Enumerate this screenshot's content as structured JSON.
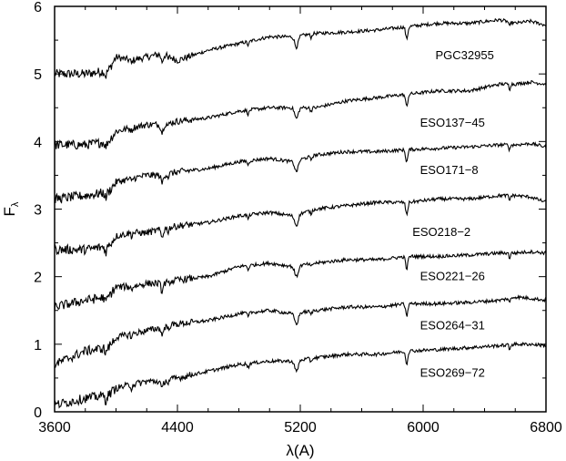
{
  "chart_data": {
    "type": "line",
    "title": "",
    "xlabel": "λ(A)",
    "ylabel": "F",
    "ylabel_subscript": "λ",
    "xlim": [
      3600,
      6800
    ],
    "ylim": [
      0,
      6
    ],
    "x_ticks": [
      3600,
      4400,
      5200,
      6000,
      6800
    ],
    "y_ticks": [
      0,
      1,
      2,
      3,
      4,
      5,
      6
    ],
    "x_minor_step": 200,
    "y_minor_step": 0.5,
    "grid": false,
    "line_color": "#000000",
    "series": [
      {
        "name": "PGC32955",
        "x": [
          3600,
          3800,
          3950,
          4000,
          4100,
          4200,
          4300,
          4400,
          4600,
          4800,
          5000,
          5150,
          5300,
          5500,
          5700,
          5900,
          6100,
          6300,
          6500,
          6600,
          6700,
          6800
        ],
        "y": [
          5.0,
          5.0,
          5.05,
          5.25,
          5.2,
          5.25,
          5.3,
          5.2,
          5.35,
          5.45,
          5.55,
          5.55,
          5.6,
          5.62,
          5.65,
          5.7,
          5.75,
          5.75,
          5.8,
          5.75,
          5.78,
          5.72
        ]
      },
      {
        "name": "ESO137−45",
        "x": [
          3600,
          3800,
          3950,
          4000,
          4100,
          4200,
          4300,
          4400,
          4600,
          4800,
          5000,
          5150,
          5300,
          5500,
          5700,
          5900,
          6100,
          6300,
          6500,
          6600,
          6700,
          6800
        ],
        "y": [
          3.95,
          3.95,
          4.0,
          4.15,
          4.2,
          4.25,
          4.25,
          4.3,
          4.35,
          4.45,
          4.5,
          4.5,
          4.5,
          4.6,
          4.65,
          4.7,
          4.75,
          4.75,
          4.85,
          4.85,
          4.88,
          4.85
        ]
      },
      {
        "name": "ESO171−8",
        "x": [
          3600,
          3800,
          3950,
          4000,
          4100,
          4200,
          4300,
          4400,
          4600,
          4800,
          5000,
          5150,
          5300,
          5500,
          5700,
          5900,
          6100,
          6300,
          6500,
          6600,
          6700,
          6800
        ],
        "y": [
          3.15,
          3.2,
          3.25,
          3.4,
          3.45,
          3.5,
          3.5,
          3.55,
          3.6,
          3.7,
          3.75,
          3.7,
          3.8,
          3.85,
          3.85,
          3.88,
          3.9,
          3.92,
          3.95,
          3.95,
          3.97,
          3.92
        ]
      },
      {
        "name": "ESO218−2",
        "x": [
          3600,
          3800,
          3950,
          4000,
          4100,
          4200,
          4300,
          4400,
          4600,
          4800,
          5000,
          5150,
          5300,
          5500,
          5700,
          5900,
          6100,
          6300,
          6500,
          6600,
          6700,
          6800
        ],
        "y": [
          2.4,
          2.4,
          2.45,
          2.6,
          2.65,
          2.65,
          2.7,
          2.75,
          2.8,
          2.9,
          2.95,
          2.9,
          3.0,
          3.05,
          3.1,
          3.1,
          3.15,
          3.15,
          3.2,
          3.2,
          3.18,
          3.1
        ]
      },
      {
        "name": "ESO221−26",
        "x": [
          3600,
          3800,
          3950,
          4000,
          4100,
          4200,
          4300,
          4400,
          4600,
          4800,
          5000,
          5150,
          5300,
          5500,
          5700,
          5900,
          6100,
          6300,
          6500,
          6600,
          6700,
          6800
        ],
        "y": [
          1.55,
          1.65,
          1.7,
          1.85,
          1.85,
          1.9,
          1.9,
          1.95,
          2.0,
          2.15,
          2.2,
          2.15,
          2.2,
          2.25,
          2.25,
          2.3,
          2.3,
          2.32,
          2.35,
          2.35,
          2.37,
          2.35
        ]
      },
      {
        "name": "ESO264−31",
        "x": [
          3600,
          3800,
          3950,
          4000,
          4100,
          4200,
          4300,
          4400,
          4600,
          4800,
          5000,
          5150,
          5300,
          5500,
          5700,
          5900,
          6100,
          6300,
          6500,
          6600,
          6700,
          6800
        ],
        "y": [
          0.7,
          0.9,
          0.95,
          1.1,
          1.15,
          1.2,
          1.25,
          1.3,
          1.35,
          1.45,
          1.5,
          1.45,
          1.5,
          1.55,
          1.55,
          1.6,
          1.6,
          1.62,
          1.65,
          1.7,
          1.68,
          1.65
        ]
      },
      {
        "name": "ESO269−72",
        "x": [
          3600,
          3800,
          3950,
          4000,
          4100,
          4200,
          4300,
          4400,
          4600,
          4800,
          5000,
          5150,
          5300,
          5500,
          5700,
          5900,
          6100,
          6300,
          6500,
          6600,
          6700,
          6800
        ],
        "y": [
          0.1,
          0.2,
          0.25,
          0.35,
          0.4,
          0.45,
          0.45,
          0.5,
          0.6,
          0.7,
          0.75,
          0.75,
          0.8,
          0.85,
          0.85,
          0.9,
          0.92,
          0.95,
          0.98,
          1.0,
          1.0,
          0.98
        ]
      }
    ],
    "labels": [
      {
        "text": "PGC32955",
        "x": 6080,
        "y": 5.22
      },
      {
        "text": "ESO137−45",
        "x": 5980,
        "y": 4.22
      },
      {
        "text": "ESO171−8",
        "x": 5980,
        "y": 3.52
      },
      {
        "text": "ESO218−2",
        "x": 5930,
        "y": 2.6
      },
      {
        "text": "ESO221−26",
        "x": 5980,
        "y": 1.95
      },
      {
        "text": "ESO264−31",
        "x": 5980,
        "y": 1.22
      },
      {
        "text": "ESO269−72",
        "x": 5980,
        "y": 0.52
      }
    ]
  }
}
